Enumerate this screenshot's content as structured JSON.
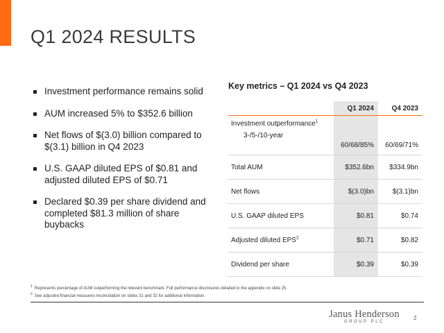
{
  "slide": {
    "title": "Q1 2024 RESULTS",
    "page_number": "2",
    "accent_color": "#ff6a13"
  },
  "bullets": [
    "Investment performance remains solid",
    "AUM increased 5% to $352.6 billion",
    "Net flows of $(3.0) billion compared to $(3.1) billion in Q4 2023",
    "U.S. GAAP diluted EPS of $0.81 and adjusted diluted EPS of $0.71",
    "Declared $0.39 per share dividend and completed $81.3 million of share buybacks"
  ],
  "metrics": {
    "title": "Key metrics – Q1 2024 vs Q4 2023",
    "headers": {
      "q1": "Q1 2024",
      "q4": "Q4 2023"
    },
    "rows": [
      {
        "label": "Investment outperformance",
        "sup": "1",
        "sublabel": "3-/5-/10-year",
        "q1": "60/68/85%",
        "q4": "60/69/71%"
      },
      {
        "label": "Total AUM",
        "q1": "$352.6bn",
        "q4": "$334.9bn"
      },
      {
        "label": "Net flows",
        "q1": "$(3.0)bn",
        "q4": "$(3.1)bn"
      },
      {
        "label": "U.S. GAAP diluted EPS",
        "q1": "$0.81",
        "q4": "$0.74"
      },
      {
        "label": "Adjusted diluted EPS",
        "sup": "2",
        "q1": "$0.71",
        "q4": "$0.82"
      },
      {
        "label": "Dividend per share",
        "q1": "$0.39",
        "q4": "$0.39"
      }
    ]
  },
  "footnotes": [
    {
      "mark": "1",
      "text": "Represents percentage of AUM outperforming the relevant benchmark. Full performance disclosures detailed in the appendix on slide 25."
    },
    {
      "mark": "2",
      "text": "See adjusted financial measures reconciliation on slides 31 and 32 for additional information."
    }
  ],
  "logo": {
    "name": "Janus Henderson",
    "sub": "GROUP PLC"
  }
}
